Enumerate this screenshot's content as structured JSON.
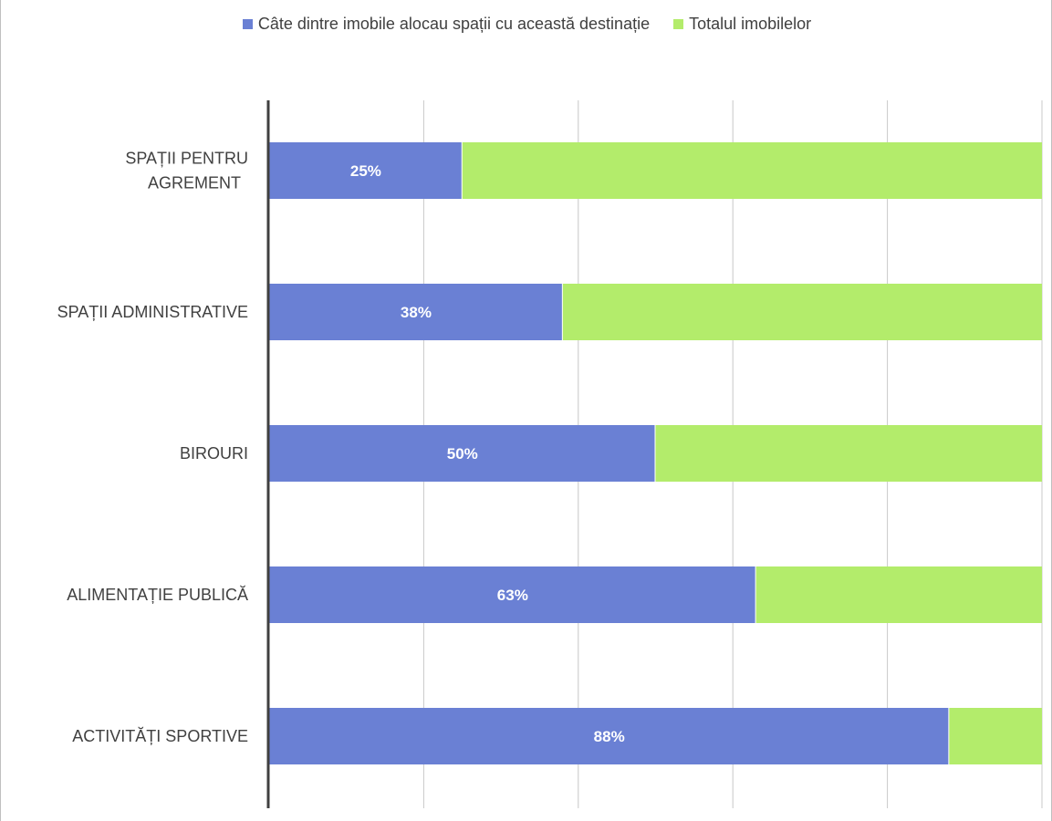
{
  "chart_data": {
    "type": "bar",
    "orientation": "horizontal",
    "stacked": "100%",
    "categories": [
      "SPAȚII PENTRU AGREMENT",
      "SPAȚII ADMINISTRATIVE",
      "BIROURI",
      "ALIMENTAȚIE PUBLICĂ",
      "ACTIVITĂȚI SPORTIVE"
    ],
    "category_lines": [
      [
        "SPAȚII PENTRU",
        "AGREMENT"
      ],
      [
        "SPAȚII ADMINISTRATIVE"
      ],
      [
        "BIROURI"
      ],
      [
        "ALIMENTAȚIE PUBLICĂ"
      ],
      [
        "ACTIVITĂȚI SPORTIVE"
      ]
    ],
    "series": [
      {
        "name": "Câte dintre imobile alocau spații cu această destinație",
        "values": [
          25,
          38,
          50,
          63,
          88
        ],
        "labels": [
          "25%",
          "38%",
          "50%",
          "63%",
          "88%"
        ],
        "color": "#6a80d4"
      },
      {
        "name": "Totalul imobilelor",
        "values": [
          75,
          62,
          50,
          37,
          12
        ],
        "color": "#b3ec6b"
      }
    ],
    "xlim": [
      0,
      100
    ],
    "grid": true,
    "legend": "top-center"
  }
}
